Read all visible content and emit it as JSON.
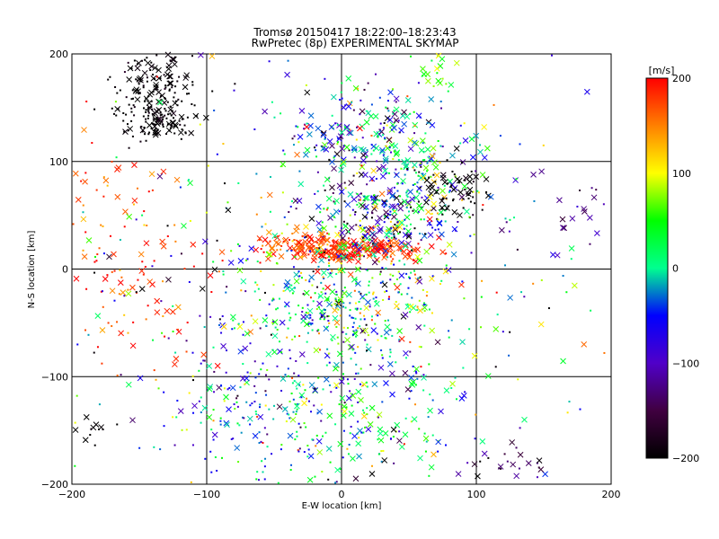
{
  "chart_data": {
    "type": "scatter",
    "title": "Tromsø 20150417 18:22:00–18:23:43",
    "subtitle": "RwPretec (8p) EXPERIMENTAL SKYMAP",
    "xlabel": "E-W location [km]",
    "ylabel": "N-S location [km]",
    "xlim": [
      -200,
      200
    ],
    "ylim": [
      -200,
      200
    ],
    "xticks": [
      -200,
      -100,
      0,
      100,
      200
    ],
    "yticks": [
      -200,
      -100,
      0,
      100,
      200
    ],
    "grid": true,
    "colorbar": {
      "label": "[m/s]",
      "range": [
        -200,
        200
      ],
      "ticks": [
        200,
        100,
        0,
        -100,
        -200
      ],
      "colormap": "rainbow (black-purple-blue-cyan-green-yellow-red)"
    },
    "markers": {
      "cross": "large echo",
      "dot": "small echo"
    },
    "clusters": [
      {
        "x": -140,
        "y": 165,
        "sx": 15,
        "sy": 22,
        "v": -200,
        "vs": 12,
        "n": 180,
        "cross": 0.3
      },
      {
        "x": -135,
        "y": 135,
        "sx": 12,
        "sy": 8,
        "v": -200,
        "vs": 10,
        "n": 80,
        "cross": 0.4
      },
      {
        "x": 5,
        "y": 18,
        "sx": 28,
        "sy": 6,
        "v": 185,
        "vs": 20,
        "n": 220,
        "cross": 0.6
      },
      {
        "x": -30,
        "y": 25,
        "sx": 14,
        "sy": 5,
        "v": 170,
        "vs": 25,
        "n": 40,
        "cross": 0.6
      },
      {
        "x": 30,
        "y": 45,
        "sx": 25,
        "sy": 20,
        "v": -40,
        "vs": 90,
        "n": 220,
        "cross": 0.45
      },
      {
        "x": 10,
        "y": 130,
        "sx": 28,
        "sy": 22,
        "v": -60,
        "vs": 90,
        "n": 180,
        "cross": 0.45
      },
      {
        "x": 55,
        "y": 90,
        "sx": 25,
        "sy": 25,
        "v": -10,
        "vs": 70,
        "n": 160,
        "cross": 0.45
      },
      {
        "x": 80,
        "y": 70,
        "sx": 12,
        "sy": 15,
        "v": -200,
        "vs": 10,
        "n": 70,
        "cross": 0.4
      },
      {
        "x": 0,
        "y": -30,
        "sx": 35,
        "sy": 28,
        "v": 20,
        "vs": 70,
        "n": 330,
        "cross": 0.2
      },
      {
        "x": -50,
        "y": -130,
        "sx": 40,
        "sy": 35,
        "v": -20,
        "vs": 70,
        "n": 260,
        "cross": 0.25
      },
      {
        "x": 40,
        "y": -130,
        "sx": 35,
        "sy": 35,
        "v": 10,
        "vs": 70,
        "n": 120,
        "cross": 0.4
      },
      {
        "x": -150,
        "y": -20,
        "sx": 30,
        "sy": 40,
        "v": 180,
        "vs": 30,
        "n": 70,
        "cross": 0.45
      },
      {
        "x": -170,
        "y": 60,
        "sx": 20,
        "sy": 50,
        "v": 170,
        "vs": 35,
        "n": 50,
        "cross": 0.3
      },
      {
        "x": 120,
        "y": -180,
        "sx": 15,
        "sy": 10,
        "v": -140,
        "vs": 30,
        "n": 25,
        "cross": 0.6
      },
      {
        "x": -185,
        "y": -150,
        "sx": 6,
        "sy": 8,
        "v": -200,
        "vs": 5,
        "n": 12,
        "cross": 0.5
      },
      {
        "x": 175,
        "y": 55,
        "sx": 15,
        "sy": 20,
        "v": -120,
        "vs": 30,
        "n": 20,
        "cross": 0.6
      },
      {
        "x": 70,
        "y": 185,
        "sx": 15,
        "sy": 10,
        "v": 70,
        "vs": 30,
        "n": 20,
        "cross": 0.5
      },
      {
        "x": 0,
        "y": 0,
        "sx": 110,
        "sy": 110,
        "v": 0,
        "vs": 120,
        "n": 420,
        "cross": 0.3
      }
    ]
  }
}
